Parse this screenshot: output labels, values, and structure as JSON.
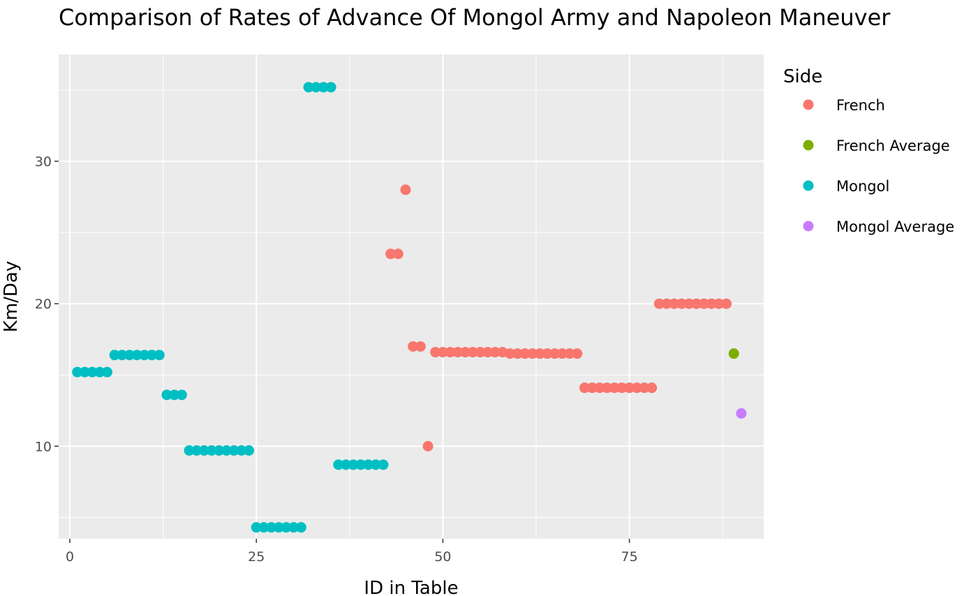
{
  "chart_data": {
    "type": "scatter",
    "title": "Comparison of Rates of Advance Of Mongol Army and Napoleon Maneuver",
    "xlabel": "ID in Table",
    "ylabel": "Km/Day",
    "xlim": [
      -1.5,
      93
    ],
    "ylim": [
      3.5,
      37.5
    ],
    "x_ticks": [
      0,
      25,
      50,
      75
    ],
    "y_ticks": [
      10,
      20,
      30
    ],
    "grid": true,
    "legend": {
      "title": "Side",
      "position": "right"
    },
    "series": [
      {
        "name": "French",
        "color": "#F8766D",
        "points": [
          {
            "x": 43,
            "y": 23.5
          },
          {
            "x": 44,
            "y": 23.5
          },
          {
            "x": 45,
            "y": 28
          },
          {
            "x": 46,
            "y": 17
          },
          {
            "x": 47,
            "y": 17
          },
          {
            "x": 48,
            "y": 10
          },
          {
            "x": 49,
            "y": 16.6
          },
          {
            "x": 50,
            "y": 16.6
          },
          {
            "x": 51,
            "y": 16.6
          },
          {
            "x": 52,
            "y": 16.6
          },
          {
            "x": 53,
            "y": 16.6
          },
          {
            "x": 54,
            "y": 16.6
          },
          {
            "x": 55,
            "y": 16.6
          },
          {
            "x": 56,
            "y": 16.6
          },
          {
            "x": 57,
            "y": 16.6
          },
          {
            "x": 58,
            "y": 16.6
          },
          {
            "x": 59,
            "y": 16.5
          },
          {
            "x": 60,
            "y": 16.5
          },
          {
            "x": 61,
            "y": 16.5
          },
          {
            "x": 62,
            "y": 16.5
          },
          {
            "x": 63,
            "y": 16.5
          },
          {
            "x": 64,
            "y": 16.5
          },
          {
            "x": 65,
            "y": 16.5
          },
          {
            "x": 66,
            "y": 16.5
          },
          {
            "x": 67,
            "y": 16.5
          },
          {
            "x": 68,
            "y": 16.5
          },
          {
            "x": 69,
            "y": 14.1
          },
          {
            "x": 70,
            "y": 14.1
          },
          {
            "x": 71,
            "y": 14.1
          },
          {
            "x": 72,
            "y": 14.1
          },
          {
            "x": 73,
            "y": 14.1
          },
          {
            "x": 74,
            "y": 14.1
          },
          {
            "x": 75,
            "y": 14.1
          },
          {
            "x": 76,
            "y": 14.1
          },
          {
            "x": 77,
            "y": 14.1
          },
          {
            "x": 78,
            "y": 14.1
          },
          {
            "x": 79,
            "y": 20
          },
          {
            "x": 80,
            "y": 20
          },
          {
            "x": 81,
            "y": 20
          },
          {
            "x": 82,
            "y": 20
          },
          {
            "x": 83,
            "y": 20
          },
          {
            "x": 84,
            "y": 20
          },
          {
            "x": 85,
            "y": 20
          },
          {
            "x": 86,
            "y": 20
          },
          {
            "x": 87,
            "y": 20
          },
          {
            "x": 88,
            "y": 20
          }
        ]
      },
      {
        "name": "French Average",
        "color": "#7CAE00",
        "points": [
          {
            "x": 89,
            "y": 16.5
          }
        ]
      },
      {
        "name": "Mongol",
        "color": "#00BFC4",
        "points": [
          {
            "x": 1,
            "y": 15.2
          },
          {
            "x": 2,
            "y": 15.2
          },
          {
            "x": 3,
            "y": 15.2
          },
          {
            "x": 4,
            "y": 15.2
          },
          {
            "x": 5,
            "y": 15.2
          },
          {
            "x": 6,
            "y": 16.4
          },
          {
            "x": 7,
            "y": 16.4
          },
          {
            "x": 8,
            "y": 16.4
          },
          {
            "x": 9,
            "y": 16.4
          },
          {
            "x": 10,
            "y": 16.4
          },
          {
            "x": 11,
            "y": 16.4
          },
          {
            "x": 12,
            "y": 16.4
          },
          {
            "x": 13,
            "y": 13.6
          },
          {
            "x": 14,
            "y": 13.6
          },
          {
            "x": 15,
            "y": 13.6
          },
          {
            "x": 16,
            "y": 9.7
          },
          {
            "x": 17,
            "y": 9.7
          },
          {
            "x": 18,
            "y": 9.7
          },
          {
            "x": 19,
            "y": 9.7
          },
          {
            "x": 20,
            "y": 9.7
          },
          {
            "x": 21,
            "y": 9.7
          },
          {
            "x": 22,
            "y": 9.7
          },
          {
            "x": 23,
            "y": 9.7
          },
          {
            "x": 24,
            "y": 9.7
          },
          {
            "x": 25,
            "y": 4.3
          },
          {
            "x": 26,
            "y": 4.3
          },
          {
            "x": 27,
            "y": 4.3
          },
          {
            "x": 28,
            "y": 4.3
          },
          {
            "x": 29,
            "y": 4.3
          },
          {
            "x": 30,
            "y": 4.3
          },
          {
            "x": 31,
            "y": 4.3
          },
          {
            "x": 32,
            "y": 35.2
          },
          {
            "x": 33,
            "y": 35.2
          },
          {
            "x": 34,
            "y": 35.2
          },
          {
            "x": 35,
            "y": 35.2
          },
          {
            "x": 36,
            "y": 8.7
          },
          {
            "x": 37,
            "y": 8.7
          },
          {
            "x": 38,
            "y": 8.7
          },
          {
            "x": 39,
            "y": 8.7
          },
          {
            "x": 40,
            "y": 8.7
          },
          {
            "x": 41,
            "y": 8.7
          },
          {
            "x": 42,
            "y": 8.7
          }
        ]
      },
      {
        "name": "Mongol Average",
        "color": "#C77CFF",
        "points": [
          {
            "x": 90,
            "y": 12.3
          }
        ]
      }
    ]
  }
}
